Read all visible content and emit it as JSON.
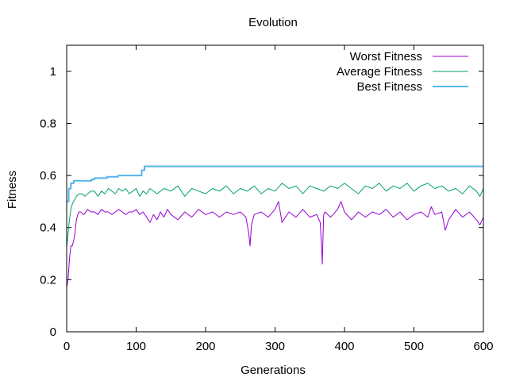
{
  "chart_data": {
    "type": "line",
    "title": "Evolution",
    "xlabel": "Generations",
    "ylabel": "Fitness",
    "xlim": [
      0,
      600
    ],
    "ylim": [
      0,
      1.1
    ],
    "xticks": [
      0,
      100,
      200,
      300,
      400,
      500,
      600
    ],
    "yticks": [
      0,
      0.2,
      0.4,
      0.6,
      0.8,
      1
    ],
    "ytick_labels": [
      "0",
      "0.2",
      "0.4",
      "0.6",
      "0.8",
      "1"
    ],
    "grid": false,
    "legend_position": "top-right",
    "series": [
      {
        "name": "Worst Fitness",
        "color": "#9400d3",
        "x": [
          0,
          2,
          4,
          6,
          8,
          10,
          12,
          14,
          16,
          18,
          20,
          25,
          30,
          35,
          40,
          45,
          50,
          55,
          60,
          65,
          70,
          75,
          80,
          85,
          90,
          95,
          100,
          105,
          110,
          115,
          120,
          125,
          130,
          135,
          140,
          145,
          150,
          160,
          170,
          180,
          190,
          200,
          210,
          220,
          230,
          240,
          250,
          258,
          262,
          264,
          266,
          270,
          280,
          290,
          300,
          305,
          310,
          320,
          330,
          340,
          350,
          360,
          365,
          367,
          368,
          369,
          370,
          372,
          380,
          390,
          395,
          400,
          410,
          420,
          430,
          440,
          450,
          460,
          470,
          480,
          490,
          500,
          510,
          520,
          525,
          530,
          540,
          545,
          550,
          560,
          570,
          580,
          590,
          595,
          600
        ],
        "y": [
          0.17,
          0.2,
          0.28,
          0.33,
          0.33,
          0.35,
          0.38,
          0.43,
          0.45,
          0.46,
          0.46,
          0.45,
          0.47,
          0.46,
          0.46,
          0.45,
          0.47,
          0.46,
          0.46,
          0.45,
          0.46,
          0.47,
          0.46,
          0.45,
          0.46,
          0.46,
          0.47,
          0.45,
          0.46,
          0.44,
          0.42,
          0.45,
          0.43,
          0.46,
          0.44,
          0.47,
          0.45,
          0.43,
          0.46,
          0.44,
          0.47,
          0.45,
          0.46,
          0.44,
          0.46,
          0.45,
          0.46,
          0.44,
          0.38,
          0.33,
          0.41,
          0.45,
          0.46,
          0.44,
          0.47,
          0.5,
          0.42,
          0.46,
          0.44,
          0.47,
          0.44,
          0.45,
          0.42,
          0.33,
          0.26,
          0.36,
          0.45,
          0.46,
          0.44,
          0.47,
          0.5,
          0.46,
          0.43,
          0.46,
          0.44,
          0.46,
          0.45,
          0.47,
          0.44,
          0.46,
          0.43,
          0.45,
          0.46,
          0.44,
          0.48,
          0.45,
          0.46,
          0.39,
          0.43,
          0.47,
          0.44,
          0.46,
          0.43,
          0.41,
          0.44
        ]
      },
      {
        "name": "Average Fitness",
        "color": "#009e73",
        "x": [
          0,
          2,
          4,
          6,
          8,
          10,
          14,
          18,
          22,
          26,
          30,
          35,
          40,
          45,
          50,
          55,
          60,
          65,
          70,
          75,
          80,
          85,
          90,
          95,
          100,
          105,
          110,
          115,
          120,
          130,
          140,
          150,
          160,
          170,
          180,
          190,
          200,
          210,
          220,
          230,
          240,
          250,
          260,
          270,
          280,
          290,
          300,
          310,
          320,
          330,
          340,
          350,
          360,
          370,
          380,
          390,
          400,
          410,
          420,
          430,
          440,
          450,
          460,
          470,
          480,
          490,
          500,
          510,
          520,
          530,
          540,
          550,
          560,
          570,
          580,
          590,
          595,
          600
        ],
        "y": [
          0.32,
          0.38,
          0.43,
          0.47,
          0.49,
          0.5,
          0.52,
          0.53,
          0.53,
          0.52,
          0.53,
          0.54,
          0.54,
          0.52,
          0.54,
          0.53,
          0.55,
          0.54,
          0.53,
          0.55,
          0.54,
          0.55,
          0.53,
          0.54,
          0.55,
          0.52,
          0.54,
          0.53,
          0.55,
          0.53,
          0.55,
          0.54,
          0.56,
          0.52,
          0.55,
          0.54,
          0.53,
          0.55,
          0.54,
          0.56,
          0.53,
          0.55,
          0.54,
          0.56,
          0.53,
          0.55,
          0.54,
          0.57,
          0.55,
          0.56,
          0.53,
          0.56,
          0.55,
          0.54,
          0.56,
          0.55,
          0.57,
          0.55,
          0.53,
          0.56,
          0.55,
          0.57,
          0.54,
          0.56,
          0.55,
          0.57,
          0.54,
          0.56,
          0.57,
          0.55,
          0.56,
          0.54,
          0.55,
          0.53,
          0.56,
          0.54,
          0.52,
          0.55
        ]
      },
      {
        "name": "Best Fitness",
        "color": "#56b4e9",
        "x": [
          0,
          3,
          3,
          6,
          6,
          10,
          10,
          36,
          36,
          40,
          40,
          58,
          58,
          74,
          74,
          108,
          108,
          112,
          112,
          600
        ],
        "y": [
          0.5,
          0.5,
          0.55,
          0.55,
          0.57,
          0.57,
          0.58,
          0.58,
          0.585,
          0.585,
          0.59,
          0.59,
          0.595,
          0.595,
          0.6,
          0.6,
          0.62,
          0.62,
          0.635,
          0.635
        ]
      }
    ]
  }
}
